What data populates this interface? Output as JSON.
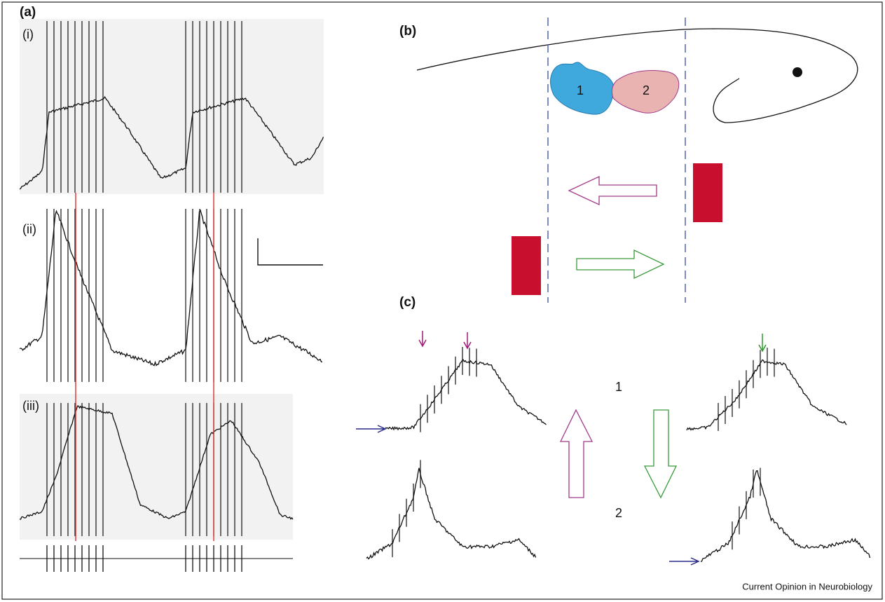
{
  "panel_a": {
    "label": "(a)",
    "traces": [
      "(i)",
      "(ii)",
      "(iii)"
    ]
  },
  "panel_b": {
    "label": "(b)",
    "regions": [
      "1",
      "2"
    ]
  },
  "panel_c": {
    "label": "(c)",
    "rows": [
      "1",
      "2"
    ]
  },
  "credit": "Current Opinion in Neurobiology"
}
